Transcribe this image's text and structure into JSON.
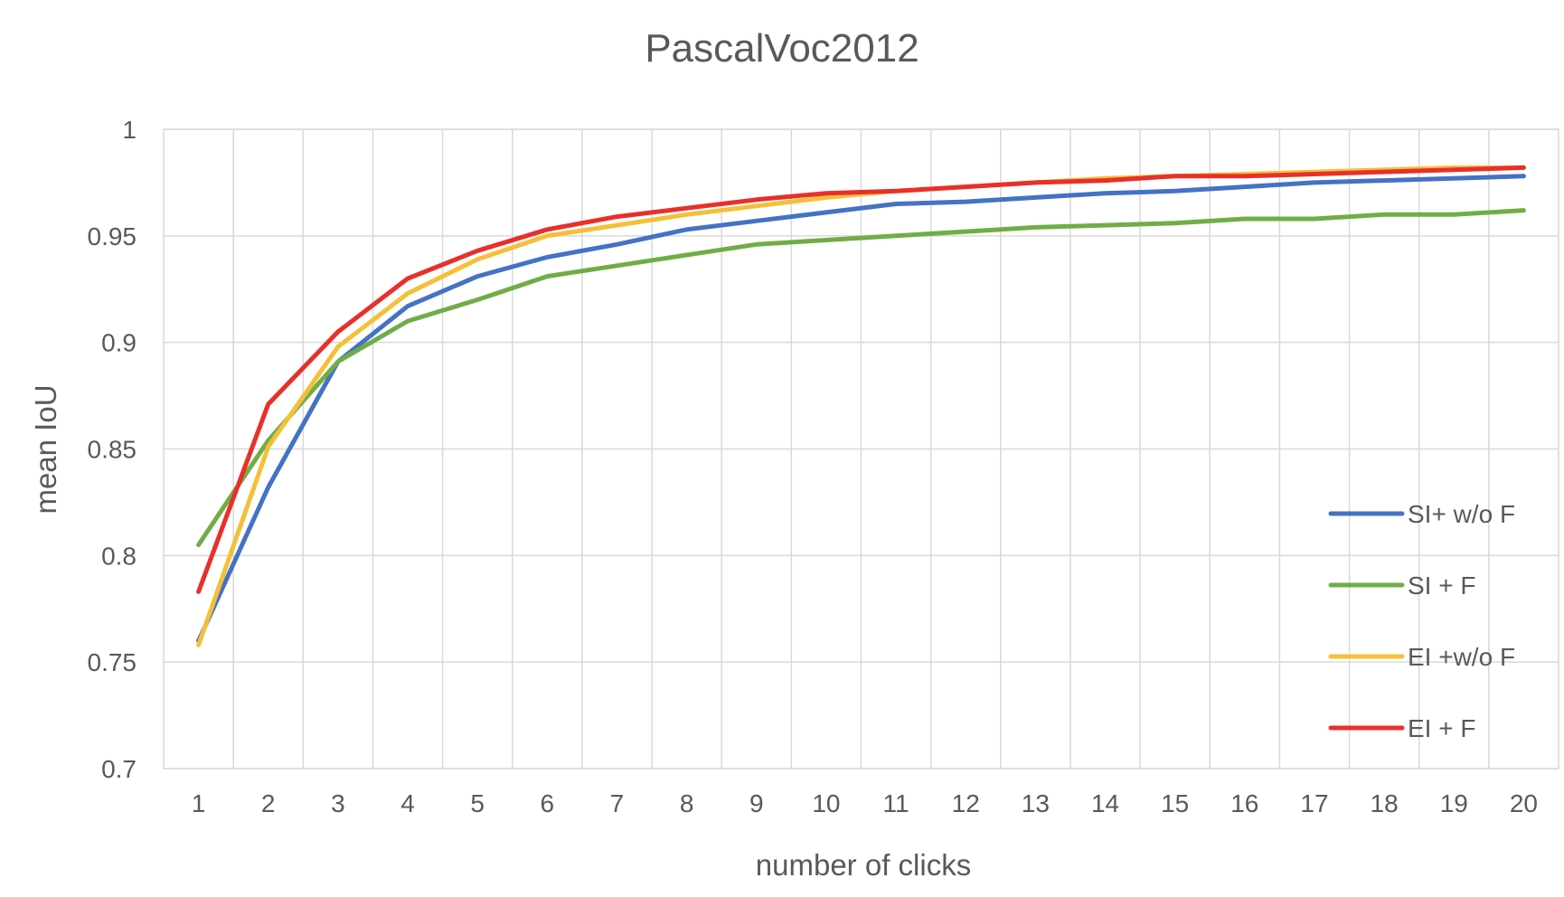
{
  "chart_data": {
    "type": "line",
    "title": "PascalVoc2012",
    "xlabel": "number of clicks",
    "ylabel": "mean IoU",
    "ylim": [
      0.7,
      1.0
    ],
    "yticks": [
      0.7,
      0.75,
      0.8,
      0.85,
      0.9,
      0.95,
      1.0
    ],
    "ytick_labels": [
      "0.7",
      "0.75",
      "0.8",
      "0.85",
      "0.9",
      "0.95",
      "1"
    ],
    "x": [
      1,
      2,
      3,
      4,
      5,
      6,
      7,
      8,
      9,
      10,
      11,
      12,
      13,
      14,
      15,
      16,
      17,
      18,
      19,
      20
    ],
    "grid": true,
    "legend_position": "right",
    "series": [
      {
        "name": "SI+ w/o F",
        "color": "#4472c4",
        "values": [
          0.76,
          0.832,
          0.891,
          0.917,
          0.931,
          0.94,
          0.946,
          0.953,
          0.957,
          0.961,
          0.965,
          0.966,
          0.968,
          0.97,
          0.971,
          0.973,
          0.975,
          0.976,
          0.977,
          0.978
        ]
      },
      {
        "name": "SI + F",
        "color": "#70ad47",
        "values": [
          0.805,
          0.854,
          0.891,
          0.91,
          0.92,
          0.931,
          0.936,
          0.941,
          0.946,
          0.948,
          0.95,
          0.952,
          0.954,
          0.955,
          0.956,
          0.958,
          0.958,
          0.96,
          0.96,
          0.962
        ]
      },
      {
        "name": "EI +w/o F",
        "color": "#f4c03a",
        "values": [
          0.758,
          0.851,
          0.898,
          0.923,
          0.939,
          0.95,
          0.955,
          0.96,
          0.964,
          0.968,
          0.971,
          0.973,
          0.975,
          0.977,
          0.978,
          0.979,
          0.98,
          0.981,
          0.982,
          0.982
        ]
      },
      {
        "name": "EI + F",
        "color": "#e8302a",
        "values": [
          0.783,
          0.871,
          0.905,
          0.93,
          0.943,
          0.953,
          0.959,
          0.963,
          0.967,
          0.97,
          0.971,
          0.973,
          0.975,
          0.976,
          0.978,
          0.978,
          0.979,
          0.98,
          0.981,
          0.982
        ]
      }
    ]
  }
}
